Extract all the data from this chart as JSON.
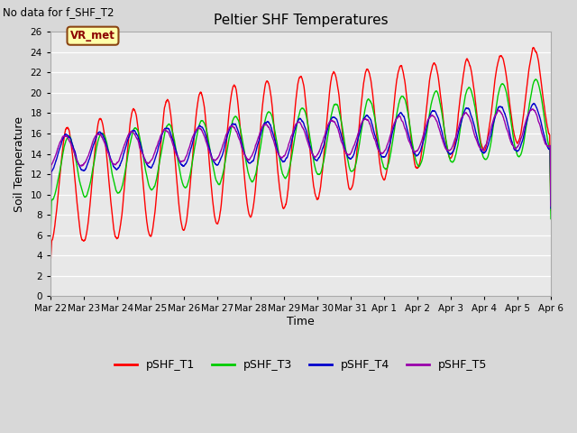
{
  "title": "Peltier SHF Temperatures",
  "subtitle": "No data for f_SHF_T2",
  "xlabel": "Time",
  "ylabel": "Soil Temperature",
  "ylim": [
    0,
    26
  ],
  "yticks": [
    0,
    2,
    4,
    6,
    8,
    10,
    12,
    14,
    16,
    18,
    20,
    22,
    24,
    26
  ],
  "bg_color": "#d8d8d8",
  "plot_bg_color": "#e8e8e8",
  "vr_met_label": "VR_met",
  "legend_entries": [
    "pSHF_T1",
    "pSHF_T3",
    "pSHF_T4",
    "pSHF_T5"
  ],
  "line_colors": [
    "#ff0000",
    "#00cc00",
    "#0000cc",
    "#9900aa"
  ],
  "x_tick_labels": [
    "Mar 22",
    "Mar 23",
    "Mar 24",
    "Mar 25",
    "Mar 26",
    "Mar 27",
    "Mar 28",
    "Mar 29",
    "Mar 30",
    "Mar 31",
    "Apr 1",
    "Apr 2",
    "Apr 3",
    "Apr 4",
    "Apr 5",
    "Apr 6"
  ],
  "num_days": 15
}
